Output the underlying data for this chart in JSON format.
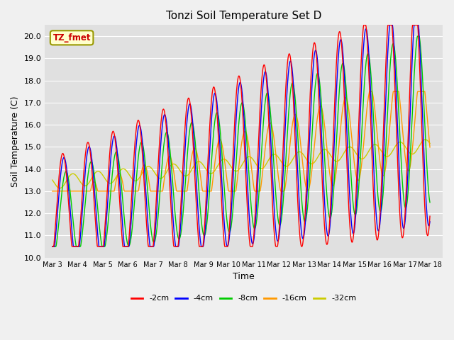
{
  "title": "Tonzi Soil Temperature Set D",
  "xlabel": "Time",
  "ylabel": "Soil Temperature (C)",
  "ylim": [
    10.0,
    20.5
  ],
  "yticks": [
    10.0,
    11.0,
    12.0,
    13.0,
    14.0,
    15.0,
    16.0,
    17.0,
    18.0,
    19.0,
    20.0
  ],
  "annotation_label": "TZ_fmet",
  "annotation_bbox_facecolor": "#ffffcc",
  "annotation_bbox_edgecolor": "#999900",
  "fig_facecolor": "#f0f0f0",
  "axes_facecolor": "#e0e0e0",
  "series_colors": {
    "-2cm": "#ff0000",
    "-4cm": "#0000ff",
    "-8cm": "#00cc00",
    "-16cm": "#ff9900",
    "-32cm": "#cccc00"
  },
  "xtick_labels": [
    "Mar 3",
    "Mar 4",
    "Mar 5",
    "Mar 6",
    "Mar 7",
    "Mar 8",
    "Mar 9",
    "Mar 10",
    "Mar 11",
    "Mar 12",
    "Mar 13",
    "Mar 14",
    "Mar 15",
    "Mar 16",
    "Mar 17",
    "Mar 18"
  ],
  "series_linewidth": 1.0,
  "num_points": 960
}
